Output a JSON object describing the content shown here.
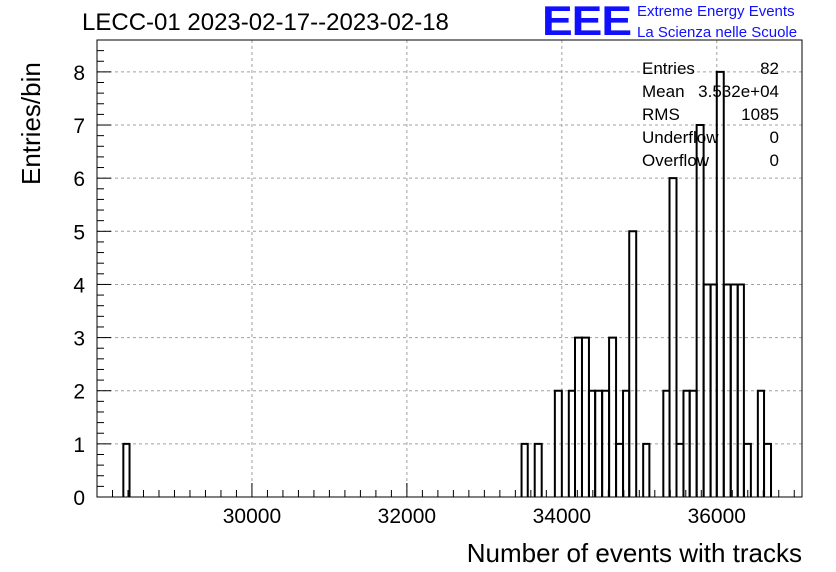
{
  "header": {
    "title": "LECC-01 2023-02-17--2023-02-18",
    "logo_text": "EEE",
    "logo_line1": "Extreme Energy Events",
    "logo_line2": "La Scienza nelle Scuole"
  },
  "colors": {
    "logo": "#1010ff",
    "grid": "#a0a0a0",
    "line": "#000000"
  },
  "stats": {
    "rows": [
      {
        "label": "Entries",
        "value": "82"
      },
      {
        "label": "Mean",
        "value": "3.532e+04"
      },
      {
        "label": "RMS",
        "value": "1085"
      },
      {
        "label": "Underflow",
        "value": "0"
      },
      {
        "label": "Overflow",
        "value": "0"
      }
    ]
  },
  "chart_data": {
    "type": "histogram",
    "title": "LECC-01 2023-02-17--2023-02-18",
    "xlabel": "Number of events with tracks",
    "ylabel": "Entries/bin",
    "xlim": [
      28000,
      37100
    ],
    "ylim": [
      0,
      8.6
    ],
    "x_ticks": [
      30000,
      32000,
      34000,
      36000
    ],
    "y_ticks": [
      0,
      1,
      2,
      3,
      4,
      5,
      6,
      7,
      8
    ],
    "grid": true,
    "stats_box": "top-right",
    "bins": [
      {
        "lo": 28340,
        "hi": 28420,
        "count": 1
      },
      {
        "lo": 33480,
        "hi": 33560,
        "count": 1
      },
      {
        "lo": 33650,
        "hi": 33740,
        "count": 1
      },
      {
        "lo": 33910,
        "hi": 34000,
        "count": 2
      },
      {
        "lo": 34090,
        "hi": 34170,
        "count": 2
      },
      {
        "lo": 34170,
        "hi": 34260,
        "count": 3
      },
      {
        "lo": 34260,
        "hi": 34350,
        "count": 3
      },
      {
        "lo": 34350,
        "hi": 34430,
        "count": 2
      },
      {
        "lo": 34430,
        "hi": 34520,
        "count": 2
      },
      {
        "lo": 34520,
        "hi": 34610,
        "count": 2
      },
      {
        "lo": 34610,
        "hi": 34700,
        "count": 3
      },
      {
        "lo": 34700,
        "hi": 34790,
        "count": 1
      },
      {
        "lo": 34790,
        "hi": 34870,
        "count": 2
      },
      {
        "lo": 34870,
        "hi": 34960,
        "count": 5
      },
      {
        "lo": 35050,
        "hi": 35130,
        "count": 1
      },
      {
        "lo": 35310,
        "hi": 35390,
        "count": 2
      },
      {
        "lo": 35390,
        "hi": 35480,
        "count": 6
      },
      {
        "lo": 35480,
        "hi": 35570,
        "count": 1
      },
      {
        "lo": 35570,
        "hi": 35650,
        "count": 2
      },
      {
        "lo": 35650,
        "hi": 35740,
        "count": 2
      },
      {
        "lo": 35740,
        "hi": 35830,
        "count": 7
      },
      {
        "lo": 35830,
        "hi": 35920,
        "count": 4
      },
      {
        "lo": 35920,
        "hi": 36000,
        "count": 4
      },
      {
        "lo": 36000,
        "hi": 36090,
        "count": 8
      },
      {
        "lo": 36090,
        "hi": 36180,
        "count": 4
      },
      {
        "lo": 36180,
        "hi": 36270,
        "count": 4
      },
      {
        "lo": 36270,
        "hi": 36350,
        "count": 4
      },
      {
        "lo": 36350,
        "hi": 36440,
        "count": 1
      },
      {
        "lo": 36530,
        "hi": 36610,
        "count": 2
      },
      {
        "lo": 36610,
        "hi": 36700,
        "count": 1
      }
    ]
  }
}
